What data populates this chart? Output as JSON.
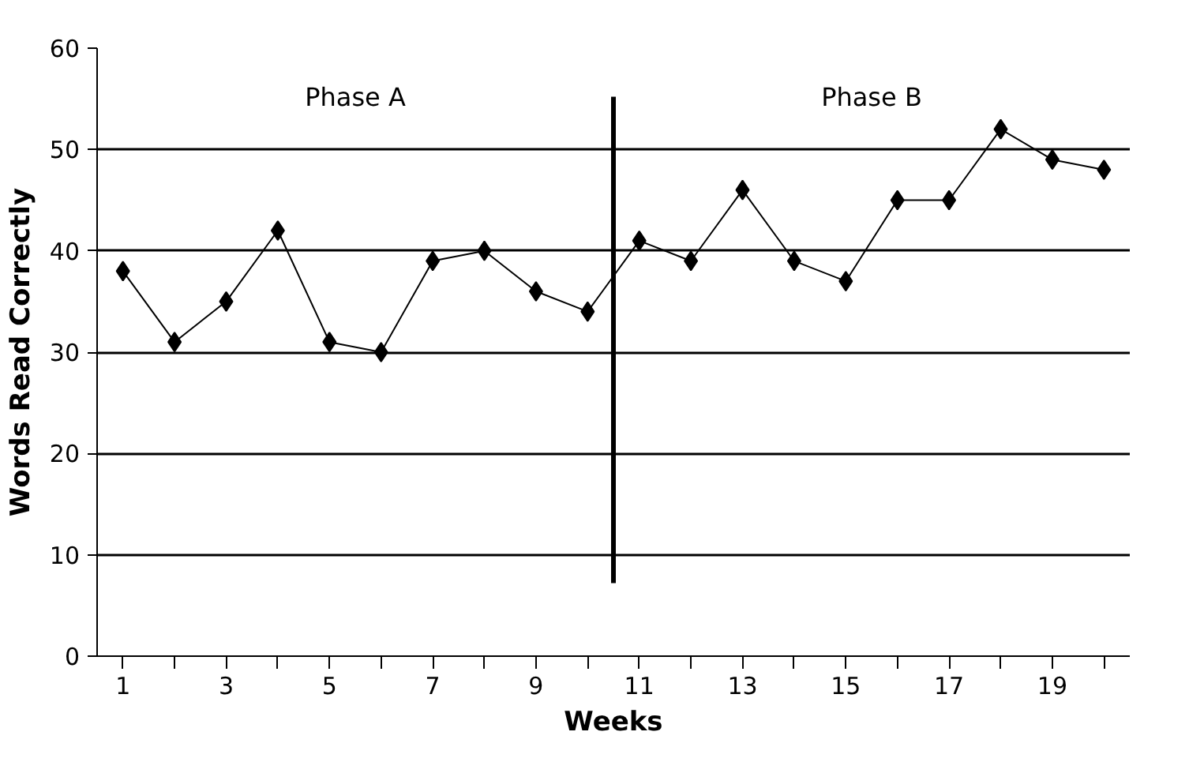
{
  "chart_data": {
    "type": "line",
    "xlabel": "Weeks",
    "ylabel": "Words Read Correctly",
    "x": [
      1,
      2,
      3,
      4,
      5,
      6,
      7,
      8,
      9,
      10,
      11,
      12,
      13,
      14,
      15,
      16,
      17,
      18,
      19,
      20
    ],
    "series": [
      {
        "color": "#000000",
        "values": [
          38,
          31,
          35,
          42,
          31,
          30,
          39,
          40,
          36,
          34,
          41,
          39,
          46,
          39,
          37,
          45,
          45,
          52,
          49,
          48
        ]
      }
    ],
    "xlim": [
      0.5,
      20.5
    ],
    "xticks": [
      1,
      {
        "value": 2,
        "label": null
      },
      3,
      {
        "value": 4,
        "label": null
      },
      5,
      {
        "value": 6,
        "label": null
      },
      7,
      {
        "value": 8,
        "label": null
      },
      9,
      {
        "value": 10,
        "label": null
      },
      11,
      {
        "value": 12,
        "label": null
      },
      13,
      {
        "value": 14,
        "label": null
      },
      15,
      {
        "value": 16,
        "label": null
      },
      17,
      {
        "value": 18,
        "label": null
      },
      19,
      {
        "value": 20,
        "label": null
      }
    ],
    "ylim": [
      0,
      60
    ],
    "yticks": [
      0,
      10,
      20,
      30,
      40,
      50,
      60
    ],
    "grid": "y",
    "marker": "diamond",
    "line_style": "solid",
    "ref_lines": [
      {
        "axis": "x",
        "value": 10.5,
        "color": "#000000"
      }
    ],
    "annotations": [
      "Phase A",
      "Phase B"
    ]
  }
}
